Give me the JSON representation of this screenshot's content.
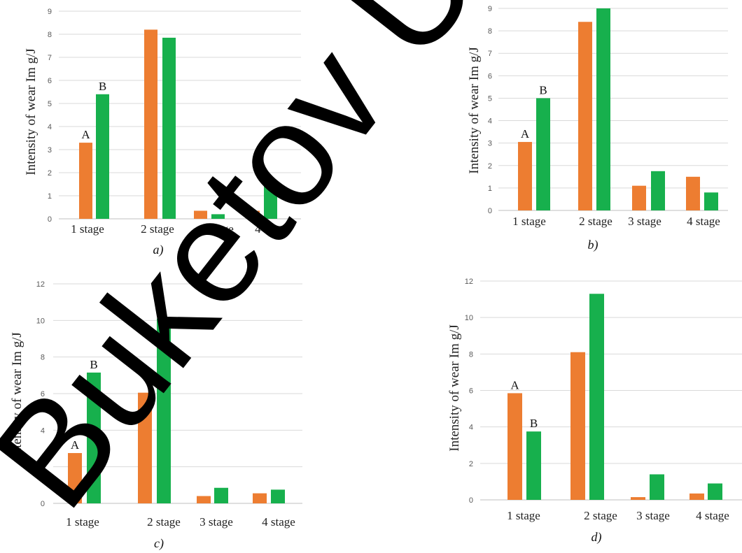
{
  "colors": {
    "A": "#ED7D31",
    "B": "#17B04D",
    "grid": "#D9D9D9",
    "axis": "#BFBFBF"
  },
  "watermark": "Buketov Univ",
  "chart_data": [
    {
      "type": "bar",
      "caption": "a)",
      "ylabel": "Intensity of wear Im g/J",
      "categories": [
        "1 stage",
        "2 stage",
        "3 stage",
        "4 stage"
      ],
      "ylim": [
        0,
        9
      ],
      "yticks": [
        0,
        1,
        2,
        3,
        4,
        5,
        6,
        7,
        8,
        9
      ],
      "grid": true,
      "series": [
        {
          "name": "A",
          "values": [
            3.3,
            8.2,
            0.35,
            0.35
          ]
        },
        {
          "name": "B",
          "values": [
            5.4,
            7.85,
            0.2,
            1.45
          ]
        }
      ]
    },
    {
      "type": "bar",
      "caption": "b)",
      "ylabel": "Intensity of wear Im g/J",
      "categories": [
        "1 stage",
        "2 stage",
        "3 stage",
        "4 stage"
      ],
      "ylim": [
        0,
        9
      ],
      "yticks": [
        0,
        1,
        2,
        3,
        4,
        5,
        6,
        7,
        8,
        9
      ],
      "grid": true,
      "series": [
        {
          "name": "A",
          "values": [
            3.05,
            8.4,
            1.1,
            1.5
          ]
        },
        {
          "name": "B",
          "values": [
            5.0,
            9.0,
            1.75,
            0.8
          ]
        }
      ]
    },
    {
      "type": "bar",
      "caption": "c)",
      "ylabel": "Intensity of wear Im g/J",
      "categories": [
        "1 stage",
        "2 stage",
        "3 stage",
        "4 stage"
      ],
      "ylim": [
        0,
        12
      ],
      "yticks": [
        0,
        2,
        4,
        6,
        8,
        10,
        12
      ],
      "grid": true,
      "series": [
        {
          "name": "A",
          "values": [
            2.75,
            6.05,
            0.4,
            0.55
          ]
        },
        {
          "name": "B",
          "values": [
            7.15,
            10.1,
            0.85,
            0.75
          ]
        }
      ]
    },
    {
      "type": "bar",
      "caption": "d)",
      "ylabel": "Intensity of wear Im g/J",
      "categories": [
        "1 stage",
        "2 stage",
        "3 stage",
        "4 stage"
      ],
      "ylim": [
        0,
        12
      ],
      "yticks": [
        0,
        2,
        4,
        6,
        8,
        10,
        12
      ],
      "grid": true,
      "series": [
        {
          "name": "A",
          "values": [
            5.85,
            8.1,
            0.15,
            0.35
          ]
        },
        {
          "name": "B",
          "values": [
            3.75,
            11.3,
            1.4,
            0.9
          ]
        }
      ]
    }
  ]
}
